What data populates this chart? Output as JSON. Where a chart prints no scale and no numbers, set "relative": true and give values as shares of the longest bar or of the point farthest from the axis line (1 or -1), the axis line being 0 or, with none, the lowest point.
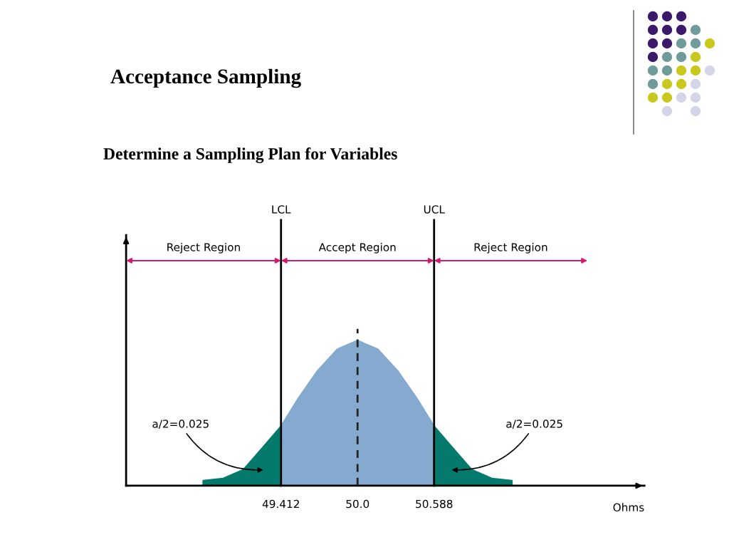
{
  "chart_data": {
    "type": "area",
    "title": "Acceptance Sampling",
    "subtitle": "Determine a Sampling Plan for Variables",
    "xlabel": "Ohms",
    "relative": true,
    "series": [
      {
        "color": "#037a6b",
        "x": [
          48.814,
          48.968,
          49.123,
          49.278,
          49.412
        ],
        "values": [
          0.035,
          0.05,
          0.11,
          0.27,
          0.41
        ]
      },
      {
        "color": "#85a9cf",
        "x": [
          49.412,
          49.536,
          49.691,
          49.845,
          50.0,
          50.155,
          50.309,
          50.464,
          50.588
        ],
        "values": [
          0.41,
          0.59,
          0.79,
          0.94,
          1,
          0.94,
          0.79,
          0.59,
          0.41
        ]
      },
      {
        "color": "#037a6b",
        "x": [
          50.588,
          50.722,
          50.877,
          51.032,
          51.186
        ],
        "values": [
          0.41,
          0.27,
          0.11,
          0.05,
          0.035
        ]
      }
    ],
    "xlim": [
      48.222,
      52.204
    ],
    "xticks": [
      49.412,
      {
        "value": 50.0,
        "label": "50.0"
      },
      50.588
    ],
    "ref_lines": [
      {
        "axis": "x",
        "value": 49.412,
        "label": "LCL",
        "color": "#000000",
        "line_style": "solid"
      },
      {
        "axis": "x",
        "value": 50.0,
        "label": null,
        "color": "#222222",
        "line_style": "dashed"
      },
      {
        "axis": "x",
        "value": 50.588,
        "label": "UCL",
        "color": "#000000",
        "line_style": "solid"
      }
    ],
    "annotations": [
      "Reject Region",
      "Accept Region",
      "Reject Region",
      "a/2=0.025",
      "a/2=0.025"
    ],
    "grid": false,
    "tick_labels": "x"
  }
}
